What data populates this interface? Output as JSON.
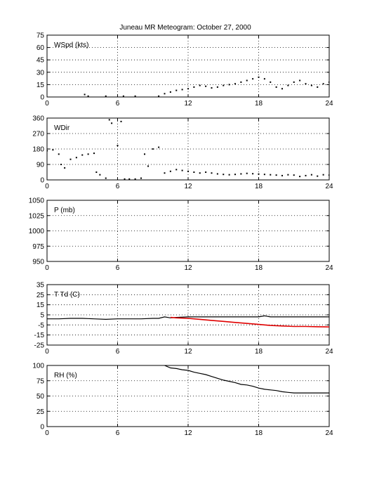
{
  "title": "Juneau MR Meteogram:    October 27, 2000",
  "colors": {
    "axis": "#000000",
    "series_main": "#000000",
    "series_dewpoint": "#e00000",
    "grid": "#000000"
  },
  "chart_data": [
    {
      "type": "scatter",
      "label": "WSpd (kts)",
      "xlim": [
        0,
        24
      ],
      "ylim": [
        0,
        75
      ],
      "xticks": [
        "0",
        "6",
        "12",
        "18",
        "24"
      ],
      "yticks": [
        "0",
        "15",
        "30",
        "45",
        "60",
        "75"
      ],
      "grid": true,
      "series": [
        {
          "color": "#000000",
          "x": [
            3.2,
            3.5,
            5.0,
            6.5,
            7.5,
            9.5,
            10.0,
            10.5,
            11.0,
            11.5,
            12.0,
            12.5,
            13.0,
            13.5,
            14.0,
            14.5,
            15.0,
            15.5,
            16.0,
            16.5,
            17.0,
            17.5,
            18.0,
            18.5,
            19.0,
            19.5,
            20.0,
            20.5,
            21.0,
            21.5,
            22.0,
            22.5,
            23.0,
            23.5,
            24.0
          ],
          "y": [
            3,
            1,
            1,
            1,
            1,
            1,
            4,
            6,
            8,
            9,
            10,
            12,
            14,
            13,
            11,
            12,
            14,
            15,
            16,
            18,
            20,
            22,
            24,
            22,
            18,
            12,
            10,
            14,
            18,
            20,
            16,
            14,
            12,
            16,
            18
          ]
        }
      ]
    },
    {
      "type": "scatter",
      "label": "WDir",
      "xlim": [
        0,
        24
      ],
      "ylim": [
        0,
        360
      ],
      "xticks": [
        "0",
        "6",
        "12",
        "18",
        "24"
      ],
      "yticks": [
        "0",
        "90",
        "180",
        "270",
        "360"
      ],
      "grid": true,
      "series": [
        {
          "color": "#000000",
          "x": [
            0.0,
            0.5,
            1.0,
            1.2,
            1.5,
            2.0,
            2.5,
            3.0,
            3.5,
            4.0,
            4.2,
            4.5,
            5.0,
            5.3,
            5.5,
            6.0,
            6.3,
            6.6,
            7.0,
            7.5,
            8.0,
            8.3,
            8.6,
            9.0,
            9.5,
            10.0,
            10.5,
            11.0,
            11.5,
            12.0,
            12.5,
            13.0,
            13.5,
            14.0,
            14.5,
            15.0,
            15.5,
            16.0,
            16.5,
            17.0,
            17.5,
            18.0,
            18.5,
            19.0,
            19.5,
            20.0,
            20.5,
            21.0,
            21.5,
            22.0,
            22.5,
            23.0,
            23.5,
            24.0
          ],
          "y": [
            170,
            175,
            150,
            90,
            70,
            120,
            130,
            145,
            150,
            155,
            45,
            30,
            10,
            350,
            330,
            200,
            340,
            5,
            5,
            5,
            10,
            150,
            80,
            180,
            190,
            40,
            50,
            60,
            55,
            50,
            45,
            40,
            45,
            40,
            35,
            32,
            30,
            32,
            35,
            38,
            36,
            34,
            32,
            30,
            28,
            25,
            30,
            28,
            20,
            25,
            30,
            22,
            30,
            28
          ]
        }
      ]
    },
    {
      "type": "line",
      "label": "P (mb)",
      "xlim": [
        0,
        24
      ],
      "ylim": [
        950,
        1050
      ],
      "xticks": [
        "0",
        "6",
        "12",
        "18",
        "24"
      ],
      "yticks": [
        "950",
        "975",
        "1000",
        "1025",
        "1050"
      ],
      "grid": true,
      "series": []
    },
    {
      "type": "line",
      "label": "T Td (C)",
      "xlim": [
        0,
        24
      ],
      "ylim": [
        -25,
        35
      ],
      "xticks": [
        "0",
        "6",
        "12",
        "18",
        "24"
      ],
      "yticks": [
        "-25",
        "-15",
        "-5",
        "5",
        "15",
        "25",
        "35"
      ],
      "grid": true,
      "series": [
        {
          "color": "#000000",
          "x": [
            0,
            1,
            2,
            3,
            4,
            5,
            6,
            7,
            8,
            9,
            9.5,
            10,
            10.5,
            11,
            12,
            13,
            14,
            15,
            16,
            17,
            17.5,
            18,
            18.5,
            19,
            20,
            21,
            22,
            23,
            24
          ],
          "y": [
            1,
            1,
            1.5,
            1.5,
            1,
            0.5,
            1,
            1,
            1,
            1.5,
            1.5,
            3,
            2,
            2.5,
            3,
            3,
            3,
            3,
            3,
            3,
            3,
            3,
            4,
            3,
            3,
            3,
            3,
            3,
            3
          ]
        },
        {
          "color": "#e00000",
          "x": [
            10.5,
            11,
            12,
            13,
            14,
            15,
            16,
            17,
            18,
            19,
            20,
            21,
            22,
            23,
            24
          ],
          "y": [
            2.5,
            2,
            1.5,
            0.5,
            -0.5,
            -1.5,
            -2.5,
            -3.5,
            -4.5,
            -5.5,
            -6,
            -6.5,
            -6.5,
            -6.8,
            -7
          ]
        }
      ]
    },
    {
      "type": "line",
      "label": "RH (%)",
      "xlim": [
        0,
        24
      ],
      "ylim": [
        0,
        100
      ],
      "xticks": [
        "0",
        "6",
        "12",
        "18",
        "24"
      ],
      "yticks": [
        "0",
        "25",
        "50",
        "75",
        "100"
      ],
      "grid": true,
      "series": [
        {
          "color": "#000000",
          "x": [
            10,
            10.5,
            11,
            11.5,
            12,
            12.5,
            13,
            13.5,
            14,
            14.5,
            15,
            15.5,
            16,
            16.5,
            17,
            17.5,
            18,
            18.5,
            19,
            19.5,
            20,
            20.5,
            21,
            21.5,
            22,
            22.5,
            23,
            23.5,
            24
          ],
          "y": [
            100,
            96,
            95,
            93,
            92,
            89,
            87,
            85,
            82,
            79,
            76,
            74,
            72,
            69,
            68,
            66,
            63,
            61,
            60,
            59,
            57,
            56,
            55,
            55,
            55,
            55,
            55,
            55,
            55
          ]
        }
      ]
    }
  ]
}
